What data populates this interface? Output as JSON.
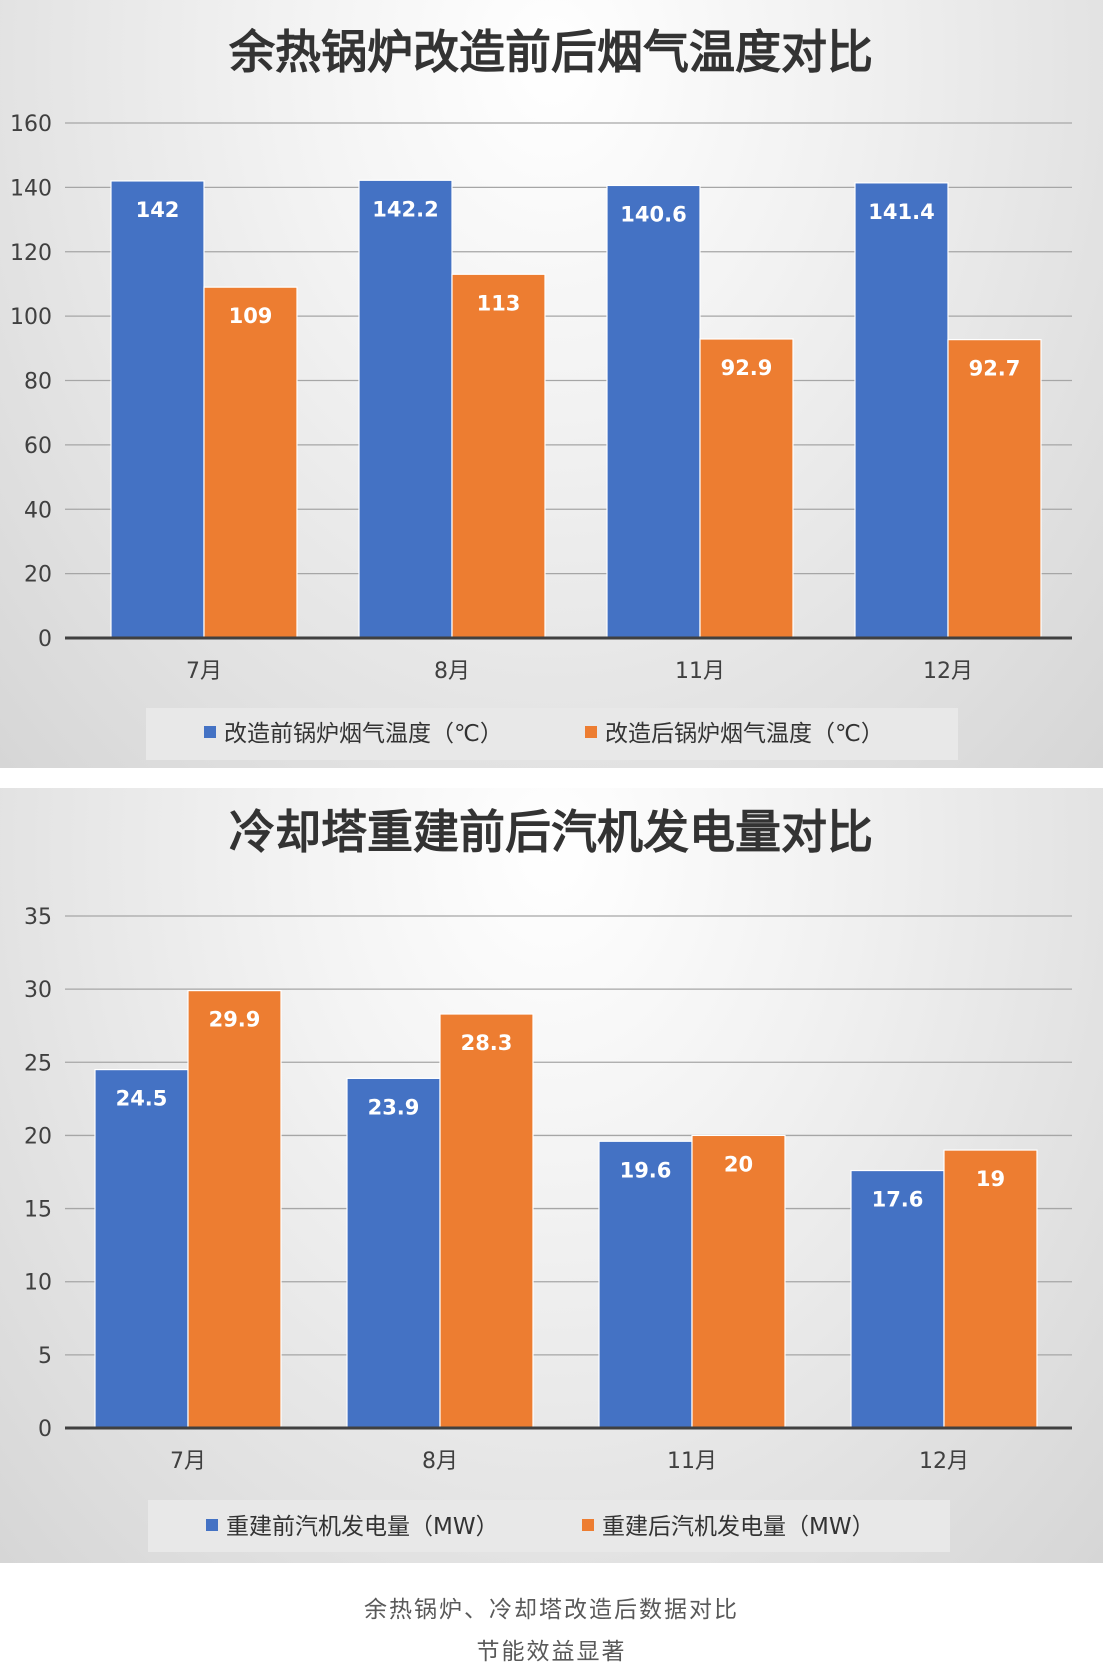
{
  "chart_data": [
    {
      "type": "bar",
      "title": "余热锅炉改造前后烟气温度对比",
      "categories": [
        "7月",
        "8月",
        "11月",
        "12月"
      ],
      "series": [
        {
          "name": "改造前锅炉烟气温度（℃）",
          "values": [
            142,
            142.2,
            140.6,
            141.4
          ],
          "color": "#4472c4"
        },
        {
          "name": "改造后锅炉烟气温度（℃）",
          "values": [
            109,
            113,
            92.9,
            92.7
          ],
          "color": "#ed7d31"
        }
      ],
      "ylim": [
        0,
        160
      ],
      "yticks": [
        0,
        20,
        40,
        60,
        80,
        100,
        120,
        140,
        160
      ],
      "grid": true,
      "legend": "bottom"
    },
    {
      "type": "bar",
      "title": "冷却塔重建前后汽机发电量对比",
      "categories": [
        "7月",
        "8月",
        "11月",
        "12月"
      ],
      "series": [
        {
          "name": "重建前汽机发电量（MW）",
          "values": [
            24.5,
            23.9,
            19.6,
            17.6
          ],
          "color": "#4472c4"
        },
        {
          "name": "重建后汽机发电量（MW）",
          "values": [
            29.9,
            28.3,
            20,
            19
          ],
          "color": "#ed7d31"
        }
      ],
      "ylim": [
        0,
        35
      ],
      "yticks": [
        0,
        5,
        10,
        15,
        20,
        25,
        30,
        35
      ],
      "grid": true,
      "legend": "bottom"
    }
  ],
  "caption": {
    "line1": "余热锅炉、冷却塔改造后数据对比",
    "line2": "节能效益显著"
  }
}
